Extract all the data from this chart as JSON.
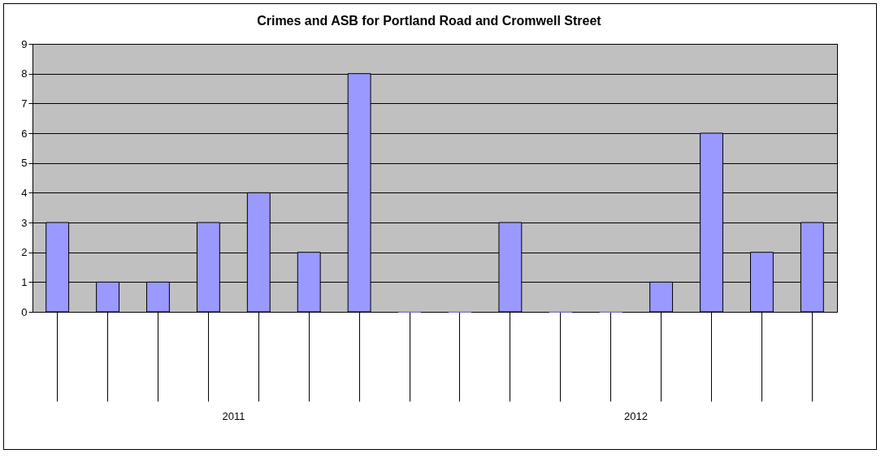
{
  "chart_data": {
    "type": "bar",
    "title": "Crimes and ASB for Portland Road and Cromwell Street",
    "categories": [
      null,
      null,
      null,
      null,
      null,
      null,
      null,
      null,
      null,
      null,
      null,
      null,
      null,
      null,
      null,
      null
    ],
    "values": [
      3,
      1,
      1,
      3,
      4,
      2,
      8,
      0,
      0,
      3,
      0,
      0,
      1,
      6,
      2,
      3
    ],
    "color": "#9999ff",
    "ylim": [
      0,
      9
    ],
    "yticks": [
      0,
      1,
      2,
      3,
      4,
      5,
      6,
      7,
      8,
      9
    ],
    "grid": "y",
    "annotations": [
      "2011",
      "2012"
    ]
  }
}
